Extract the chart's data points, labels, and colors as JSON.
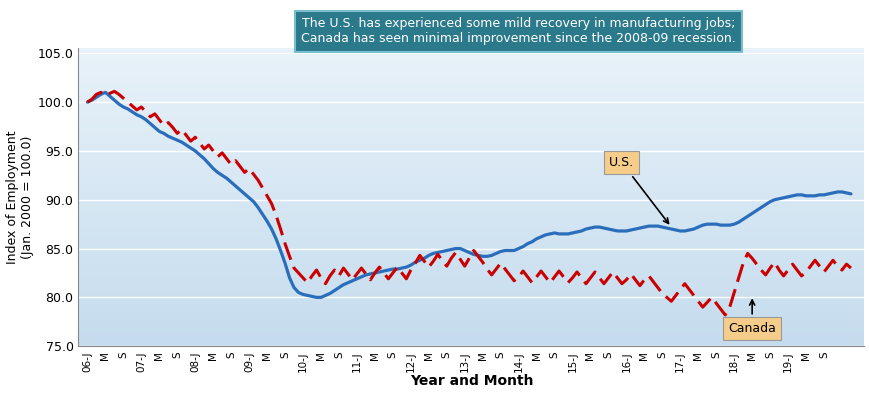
{
  "title_box_text": "The U.S. has experienced some mild recovery in manufacturing jobs;\nCanada has seen minimal improvement since the 2008-09 recession.",
  "xlabel": "Year and Month",
  "ylabel": "Index of Employment\n(Jan. 2000 = 100.0)",
  "ylim": [
    75.0,
    105.5
  ],
  "yticks": [
    75.0,
    80.0,
    85.0,
    90.0,
    95.0,
    100.0,
    105.0
  ],
  "annotation_us_text": "U.S.",
  "annotation_canada_text": "Canada",
  "us_color": "#2A6EBB",
  "canada_color": "#CC0000",
  "us_lw": 2.3,
  "canada_lw": 2.2,
  "title_box_color": "#2B7A8C",
  "title_box_edge": "#5AACBC",
  "us_label_box": "#F5CC8A",
  "canada_label_box": "#F5CC8A",
  "us_data": [
    100.0,
    100.2,
    100.5,
    100.8,
    101.0,
    100.6,
    100.2,
    99.8,
    99.5,
    99.3,
    99.0,
    98.7,
    98.5,
    98.2,
    97.8,
    97.4,
    97.0,
    96.8,
    96.5,
    96.3,
    96.1,
    95.9,
    95.6,
    95.3,
    95.0,
    94.6,
    94.2,
    93.7,
    93.2,
    92.8,
    92.5,
    92.2,
    91.8,
    91.4,
    91.0,
    90.6,
    90.2,
    89.8,
    89.2,
    88.5,
    87.8,
    87.0,
    86.0,
    84.8,
    83.5,
    82.0,
    81.0,
    80.5,
    80.3,
    80.2,
    80.1,
    80.0,
    80.0,
    80.2,
    80.4,
    80.7,
    81.0,
    81.3,
    81.5,
    81.7,
    81.9,
    82.1,
    82.3,
    82.4,
    82.5,
    82.6,
    82.7,
    82.8,
    82.9,
    82.9,
    83.0,
    83.1,
    83.3,
    83.6,
    83.8,
    84.0,
    84.3,
    84.5,
    84.6,
    84.7,
    84.8,
    84.9,
    85.0,
    85.0,
    84.8,
    84.6,
    84.4,
    84.3,
    84.2,
    84.2,
    84.3,
    84.5,
    84.7,
    84.8,
    84.8,
    84.8,
    85.0,
    85.2,
    85.5,
    85.7,
    86.0,
    86.2,
    86.4,
    86.5,
    86.6,
    86.5,
    86.5,
    86.5,
    86.6,
    86.7,
    86.8,
    87.0,
    87.1,
    87.2,
    87.2,
    87.1,
    87.0,
    86.9,
    86.8,
    86.8,
    86.8,
    86.9,
    87.0,
    87.1,
    87.2,
    87.3,
    87.3,
    87.3,
    87.2,
    87.1,
    87.0,
    86.9,
    86.8,
    86.8,
    86.9,
    87.0,
    87.2,
    87.4,
    87.5,
    87.5,
    87.5,
    87.4,
    87.4,
    87.4,
    87.5,
    87.7,
    88.0,
    88.3,
    88.6,
    88.9,
    89.2,
    89.5,
    89.8,
    90.0,
    90.1,
    90.2,
    90.3,
    90.4,
    90.5,
    90.5,
    90.4,
    90.4,
    90.4,
    90.5,
    90.5,
    90.6,
    90.7,
    90.8,
    90.8,
    90.7,
    90.6
  ],
  "canada_data": [
    100.0,
    100.3,
    100.8,
    101.0,
    100.7,
    100.9,
    101.1,
    100.8,
    100.4,
    100.0,
    99.6,
    99.2,
    99.5,
    99.0,
    98.5,
    98.8,
    98.2,
    97.6,
    97.9,
    97.4,
    96.8,
    97.2,
    96.6,
    96.0,
    96.4,
    95.8,
    95.2,
    95.6,
    95.0,
    94.4,
    94.8,
    94.2,
    93.6,
    94.0,
    93.4,
    92.8,
    93.2,
    92.6,
    92.0,
    91.2,
    90.4,
    89.6,
    88.4,
    87.0,
    85.5,
    84.2,
    83.0,
    82.5,
    82.0,
    81.5,
    82.2,
    82.8,
    82.0,
    81.4,
    82.2,
    82.8,
    82.2,
    83.0,
    82.4,
    81.8,
    82.4,
    83.0,
    82.4,
    81.8,
    82.5,
    83.1,
    82.5,
    81.9,
    82.5,
    83.1,
    82.5,
    81.9,
    82.8,
    83.5,
    84.3,
    83.7,
    83.1,
    83.7,
    84.4,
    83.8,
    83.2,
    84.0,
    84.6,
    83.9,
    83.2,
    84.0,
    84.8,
    84.2,
    83.6,
    82.9,
    82.3,
    82.9,
    83.5,
    82.9,
    82.3,
    81.7,
    82.1,
    82.7,
    82.1,
    81.5,
    82.1,
    82.7,
    82.1,
    81.5,
    82.1,
    82.7,
    82.1,
    81.5,
    82.0,
    82.6,
    82.0,
    81.4,
    82.0,
    82.6,
    82.0,
    81.4,
    82.0,
    82.6,
    82.0,
    81.4,
    81.8,
    82.4,
    81.8,
    81.2,
    81.8,
    82.2,
    81.6,
    81.0,
    80.4,
    80.0,
    79.6,
    80.2,
    80.8,
    81.4,
    80.8,
    80.2,
    79.6,
    79.0,
    79.5,
    80.0,
    79.4,
    78.8,
    78.2,
    79.0,
    80.5,
    82.0,
    83.5,
    84.5,
    84.0,
    83.4,
    82.8,
    82.3,
    83.0,
    83.6,
    82.8,
    82.2,
    82.8,
    83.4,
    82.8,
    82.2,
    82.6,
    83.2,
    83.8,
    83.2,
    82.6,
    83.2,
    83.8,
    83.2,
    82.8,
    83.4,
    83.0
  ],
  "xtick_labels": [
    "06-J",
    "M",
    "S",
    "07-J",
    "M",
    "S",
    "08-J",
    "M",
    "S",
    "09-J",
    "M",
    "S",
    "10-J",
    "M",
    "S",
    "11-J",
    "M",
    "S",
    "12-J",
    "M",
    "S",
    "13-J",
    "M",
    "S",
    "14-J",
    "M",
    "S",
    "15-J",
    "M",
    "S",
    "16-J",
    "M",
    "S",
    "17-J",
    "M",
    "S",
    "18-J",
    "M",
    "S",
    "19-J",
    "M",
    "S"
  ],
  "xtick_positions": [
    0,
    4,
    8,
    12,
    16,
    20,
    24,
    28,
    32,
    36,
    40,
    44,
    48,
    52,
    56,
    60,
    64,
    68,
    72,
    76,
    80,
    84,
    88,
    92,
    96,
    100,
    104,
    108,
    112,
    116,
    120,
    124,
    128,
    132,
    136,
    140,
    144,
    148,
    152,
    156,
    160,
    164
  ]
}
